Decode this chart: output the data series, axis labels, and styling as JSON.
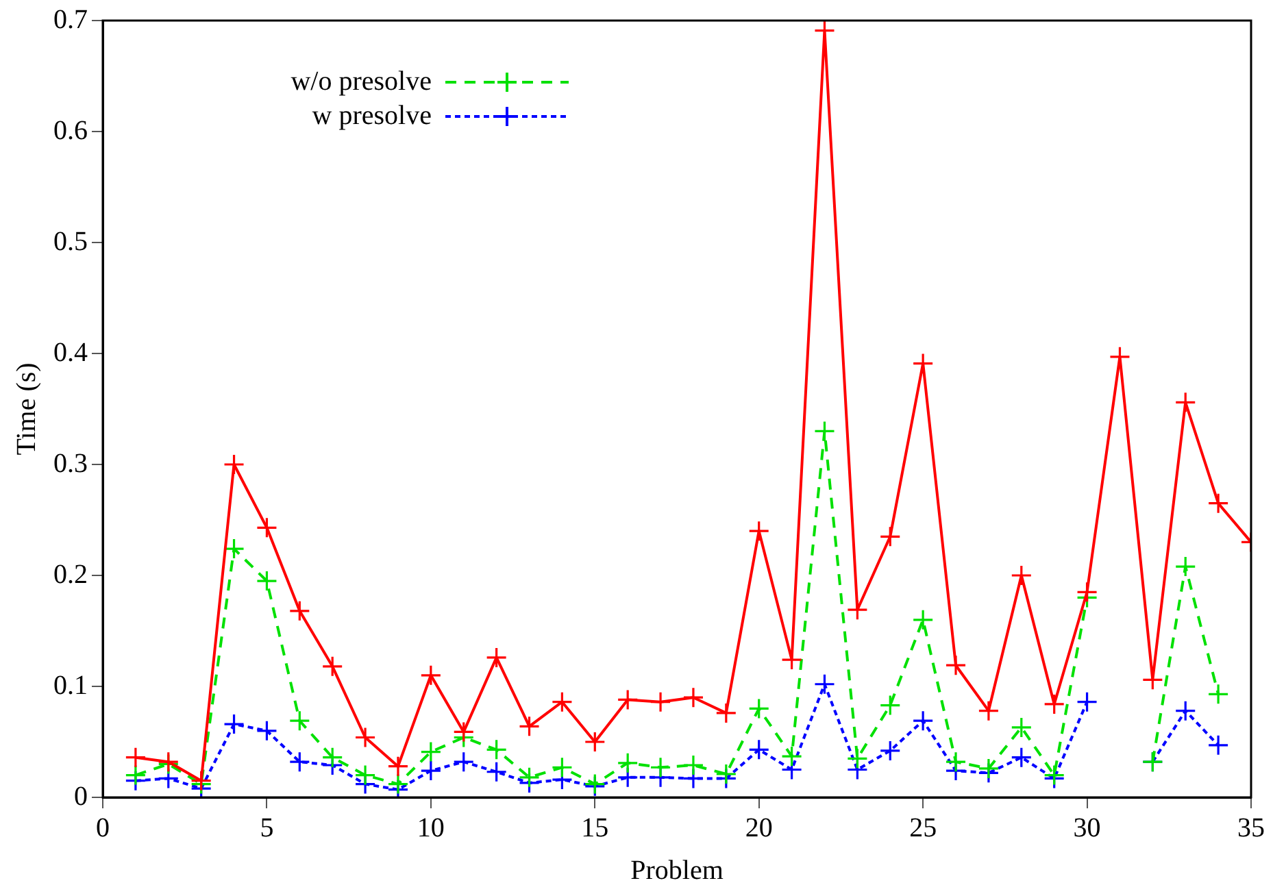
{
  "chart_data": {
    "type": "line",
    "xlabel": "Problem",
    "ylabel": "Time (s)",
    "x": [
      1,
      2,
      3,
      4,
      5,
      6,
      7,
      8,
      9,
      10,
      11,
      12,
      13,
      14,
      15,
      16,
      17,
      18,
      19,
      20,
      21,
      22,
      23,
      24,
      25,
      26,
      27,
      28,
      29,
      30,
      31,
      32,
      33,
      34,
      35
    ],
    "xlim": [
      0,
      35
    ],
    "xticks": [
      0,
      5,
      10,
      15,
      20,
      25,
      30,
      35
    ],
    "ylim": [
      0,
      0.7
    ],
    "yticks": [
      0,
      0.1,
      0.2,
      0.3,
      0.4,
      0.5,
      0.6,
      0.7
    ],
    "grid": false,
    "legend": "top left",
    "series": [
      {
        "color": "#ff0000",
        "marker": "cross",
        "line_style": "solid",
        "values": [
          0.036,
          0.032,
          0.015,
          0.3,
          0.243,
          0.168,
          0.118,
          0.054,
          0.028,
          0.11,
          0.059,
          0.126,
          0.064,
          0.086,
          0.05,
          0.088,
          0.086,
          0.09,
          0.076,
          0.24,
          0.124,
          0.691,
          0.169,
          0.235,
          0.391,
          0.119,
          0.078,
          0.2,
          0.084,
          0.185,
          0.397,
          0.106,
          0.356,
          0.265,
          0.23
        ]
      },
      {
        "name": "w/o presolve",
        "color": "#00e000",
        "marker": "cross",
        "line_style": "dashed",
        "values": [
          0.02,
          0.03,
          0.012,
          0.224,
          0.195,
          0.069,
          0.036,
          0.02,
          0.012,
          0.041,
          0.054,
          0.043,
          0.018,
          0.027,
          0.012,
          0.031,
          0.027,
          0.029,
          0.021,
          0.08,
          0.037,
          0.33,
          0.035,
          0.083,
          0.16,
          0.032,
          0.026,
          0.063,
          0.02,
          0.18,
          null,
          0.032,
          0.208,
          0.093,
          null
        ]
      },
      {
        "name": "w presolve",
        "color": "#0000ff",
        "marker": "cross",
        "line_style": "dotted",
        "values": [
          0.015,
          0.017,
          0.008,
          0.066,
          0.06,
          0.032,
          0.029,
          0.012,
          0.007,
          0.024,
          0.032,
          0.023,
          0.013,
          0.016,
          0.01,
          0.018,
          0.018,
          0.017,
          0.017,
          0.043,
          0.025,
          0.102,
          0.025,
          0.042,
          0.069,
          0.024,
          0.022,
          0.036,
          0.017,
          0.086,
          null,
          0.032,
          0.078,
          0.047,
          null
        ]
      }
    ]
  }
}
